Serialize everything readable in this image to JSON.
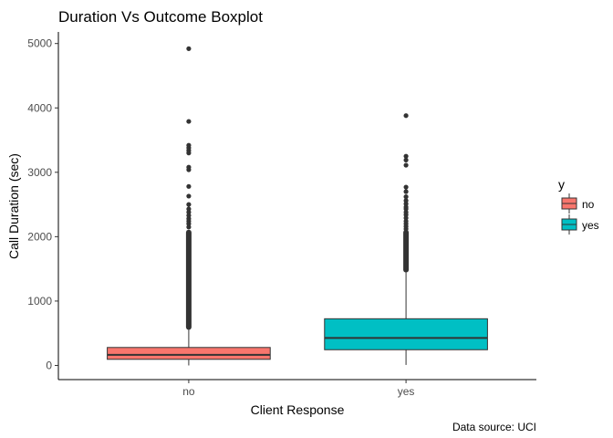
{
  "chart_data": {
    "type": "boxplot",
    "title": "Duration Vs Outcome Boxplot",
    "xlabel": "Client Response",
    "ylabel": "Call Duration (sec)",
    "caption": "Data source: UCI",
    "categories": [
      "no",
      "yes"
    ],
    "ylim": [
      -220,
      5180
    ],
    "yticks": [
      0,
      1000,
      2000,
      3000,
      4000,
      5000
    ],
    "grid": false,
    "legend": {
      "title": "y",
      "position": "right",
      "entries": [
        {
          "label": "no",
          "color": "#F8766D"
        },
        {
          "label": "yes",
          "color": "#00BFC4"
        }
      ]
    },
    "boxes": [
      {
        "category": "no",
        "color": "#F8766D",
        "min": 0,
        "q1": 95,
        "median": 164,
        "q3": 279,
        "whisker_high": 553,
        "outlier_band": [
          553,
          2080
        ],
        "outliers": [
          2150,
          2200,
          2240,
          2280,
          2330,
          2380,
          2430,
          2500,
          2630,
          2780,
          3040,
          3080,
          3300,
          3340,
          3380,
          3420,
          3790,
          4920
        ]
      },
      {
        "category": "yes",
        "color": "#00BFC4",
        "min": 8,
        "q1": 244,
        "median": 426,
        "q3": 725,
        "whisker_high": 1444,
        "outlier_band": [
          1444,
          2080
        ],
        "outliers": [
          2120,
          2160,
          2200,
          2240,
          2290,
          2340,
          2380,
          2430,
          2460,
          2510,
          2560,
          2620,
          2700,
          2770,
          3110,
          3190,
          3250,
          3880
        ]
      }
    ]
  }
}
